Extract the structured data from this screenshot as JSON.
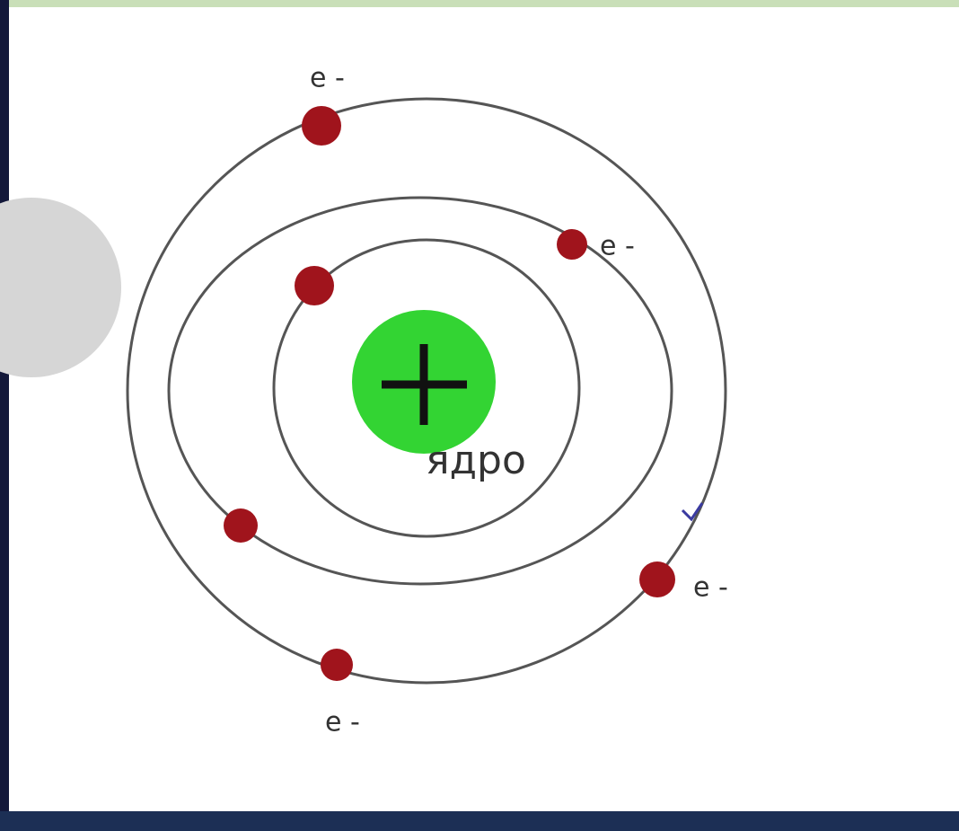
{
  "nucleus": {
    "label": "ядро"
  },
  "electron_labels": [
    "e -",
    "e -",
    "e -",
    "e -"
  ]
}
